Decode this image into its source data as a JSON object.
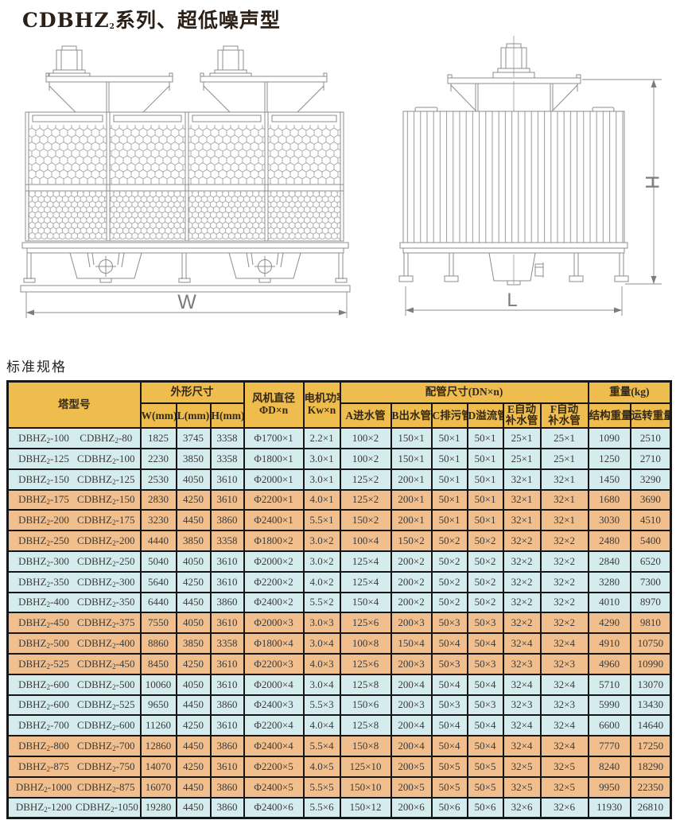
{
  "page": {
    "title": "CDBHZ₂系列、超低噪声型",
    "section_title": "标准规格"
  },
  "drawing": {
    "labels": {
      "front_width": "W",
      "side_length": "L",
      "side_height": "H"
    }
  },
  "table": {
    "header": {
      "model": "塔型号",
      "dims": "外形尺寸",
      "w": "W(mm)",
      "l": "L(mm)",
      "h": "H(mm)",
      "fan1": "风机直径",
      "fan2": "ΦD×n",
      "power1": "电机功率",
      "power2": "Kw×n",
      "piping": "配管尺寸(DN×n)",
      "pa": "A进水管",
      "pb": "B出水管",
      "pc": "C排污管",
      "pd": "D溢流管",
      "pe1": "E自动",
      "pe2": "补水管",
      "pf1": "F自动",
      "pf2": "补水管",
      "weight": "重量(kg)",
      "wstruct": "结构重量",
      "wrun": "运转重量"
    },
    "rows": [
      {
        "model_a": "DBHZ₂-100",
        "model_b": "CDBHZ₂-80",
        "w": "1825",
        "l": "3745",
        "h": "3358",
        "fan": "Φ1700×1",
        "power": "2.2×1",
        "a": "100×2",
        "b": "150×1",
        "c": "50×1",
        "d": "50×1",
        "e": "25×1",
        "f": "25×1",
        "ws": "1090",
        "wr": "2510",
        "tint": "blue"
      },
      {
        "model_a": "DBHZ₂-125",
        "model_b": "CDBHZ₂-100",
        "w": "2230",
        "l": "3850",
        "h": "3358",
        "fan": "Φ1800×1",
        "power": "3.0×1",
        "a": "100×2",
        "b": "150×1",
        "c": "50×1",
        "d": "50×1",
        "e": "25×1",
        "f": "25×1",
        "ws": "1250",
        "wr": "2710",
        "tint": "blue"
      },
      {
        "model_a": "DBHZ₂-150",
        "model_b": "CDBHZ₂-125",
        "w": "2530",
        "l": "4050",
        "h": "3610",
        "fan": "Φ2000×1",
        "power": "3.0×1",
        "a": "125×2",
        "b": "200×1",
        "c": "50×1",
        "d": "50×1",
        "e": "32×1",
        "f": "32×1",
        "ws": "1450",
        "wr": "3290",
        "tint": "blue"
      },
      {
        "model_a": "DBHZ₂-175",
        "model_b": "CDBHZ₂-150",
        "w": "2830",
        "l": "4250",
        "h": "3610",
        "fan": "Φ2200×1",
        "power": "4.0×1",
        "a": "125×2",
        "b": "200×1",
        "c": "50×1",
        "d": "50×1",
        "e": "32×1",
        "f": "32×1",
        "ws": "1680",
        "wr": "3690",
        "tint": "tan"
      },
      {
        "model_a": "DBHZ₂-200",
        "model_b": "CDBHZ₂-175",
        "w": "3230",
        "l": "4450",
        "h": "3860",
        "fan": "Φ2400×1",
        "power": "5.5×1",
        "a": "150×2",
        "b": "200×1",
        "c": "50×1",
        "d": "50×1",
        "e": "32×1",
        "f": "32×1",
        "ws": "3030",
        "wr": "4510",
        "tint": "tan"
      },
      {
        "model_a": "DBHZ₂-250",
        "model_b": "CDBHZ₂-200",
        "w": "4440",
        "l": "3850",
        "h": "3358",
        "fan": "Φ1800×2",
        "power": "3.0×2",
        "a": "100×4",
        "b": "150×2",
        "c": "50×2",
        "d": "50×2",
        "e": "32×2",
        "f": "32×2",
        "ws": "2480",
        "wr": "5400",
        "tint": "tan"
      },
      {
        "model_a": "DBHZ₂-300",
        "model_b": "CDBHZ₂-250",
        "w": "5040",
        "l": "4050",
        "h": "3610",
        "fan": "Φ2000×2",
        "power": "3.0×2",
        "a": "125×4",
        "b": "200×2",
        "c": "50×2",
        "d": "50×2",
        "e": "32×2",
        "f": "32×2",
        "ws": "2840",
        "wr": "6520",
        "tint": "blue"
      },
      {
        "model_a": "DBHZ₂-350",
        "model_b": "CDBHZ₂-300",
        "w": "5640",
        "l": "4250",
        "h": "3610",
        "fan": "Φ2200×2",
        "power": "4.0×2",
        "a": "125×4",
        "b": "200×2",
        "c": "50×2",
        "d": "50×2",
        "e": "32×2",
        "f": "32×2",
        "ws": "3280",
        "wr": "7300",
        "tint": "blue"
      },
      {
        "model_a": "DBHZ₂-400",
        "model_b": "CDBHZ₂-350",
        "w": "6440",
        "l": "4450",
        "h": "3860",
        "fan": "Φ2400×2",
        "power": "5.5×2",
        "a": "150×4",
        "b": "200×2",
        "c": "50×2",
        "d": "50×2",
        "e": "32×2",
        "f": "32×2",
        "ws": "4010",
        "wr": "8970",
        "tint": "blue"
      },
      {
        "model_a": "DBHZ₂-450",
        "model_b": "CDBHZ₂-375",
        "w": "7550",
        "l": "4050",
        "h": "3610",
        "fan": "Φ2000×3",
        "power": "3.0×3",
        "a": "125×6",
        "b": "200×3",
        "c": "50×3",
        "d": "50×3",
        "e": "32×2",
        "f": "32×2",
        "ws": "4290",
        "wr": "9810",
        "tint": "tan"
      },
      {
        "model_a": "DBHZ₂-500",
        "model_b": "CDBHZ₂-400",
        "w": "8860",
        "l": "3850",
        "h": "3358",
        "fan": "Φ1800×4",
        "power": "3.0×4",
        "a": "100×8",
        "b": "150×4",
        "c": "50×4",
        "d": "50×4",
        "e": "32×4",
        "f": "32×4",
        "ws": "4910",
        "wr": "10750",
        "tint": "tan"
      },
      {
        "model_a": "DBHZ₂-525",
        "model_b": "CDBHZ₂-450",
        "w": "8450",
        "l": "4250",
        "h": "3610",
        "fan": "Φ2200×3",
        "power": "4.0×3",
        "a": "125×6",
        "b": "200×3",
        "c": "50×3",
        "d": "50×3",
        "e": "32×3",
        "f": "32×3",
        "ws": "4960",
        "wr": "10990",
        "tint": "tan"
      },
      {
        "model_a": "DBHZ₂-600",
        "model_b": "CDBHZ₂-500",
        "w": "10060",
        "l": "4050",
        "h": "3610",
        "fan": "Φ2000×4",
        "power": "3.0×4",
        "a": "125×8",
        "b": "200×4",
        "c": "50×4",
        "d": "50×4",
        "e": "32×4",
        "f": "32×4",
        "ws": "5710",
        "wr": "13070",
        "tint": "blue"
      },
      {
        "model_a": "DBHZ₂-600",
        "model_b": "CDBHZ₂-525",
        "w": "9650",
        "l": "4450",
        "h": "3860",
        "fan": "Φ2400×3",
        "power": "5.5×3",
        "a": "150×6",
        "b": "200×3",
        "c": "50×3",
        "d": "50×3",
        "e": "32×3",
        "f": "32×3",
        "ws": "5990",
        "wr": "13430",
        "tint": "blue"
      },
      {
        "model_a": "DBHZ₂-700",
        "model_b": "CDBHZ₂-600",
        "w": "11260",
        "l": "4250",
        "h": "3610",
        "fan": "Φ2200×4",
        "power": "4.0×4",
        "a": "125×8",
        "b": "200×4",
        "c": "50×4",
        "d": "50×4",
        "e": "32×4",
        "f": "32×4",
        "ws": "6600",
        "wr": "14640",
        "tint": "blue"
      },
      {
        "model_a": "DBHZ₂-800",
        "model_b": "CDBHZ₂-700",
        "w": "12860",
        "l": "4450",
        "h": "3860",
        "fan": "Φ2400×4",
        "power": "5.5×4",
        "a": "150×8",
        "b": "200×4",
        "c": "50×4",
        "d": "50×4",
        "e": "32×4",
        "f": "32×4",
        "ws": "7770",
        "wr": "17250",
        "tint": "tan"
      },
      {
        "model_a": "DBHZ₂-875",
        "model_b": "CDBHZ₂-750",
        "w": "14070",
        "l": "4250",
        "h": "3610",
        "fan": "Φ2200×5",
        "power": "4.0×5",
        "a": "125×10",
        "b": "200×5",
        "c": "50×5",
        "d": "50×5",
        "e": "32×5",
        "f": "32×5",
        "ws": "8240",
        "wr": "18290",
        "tint": "tan"
      },
      {
        "model_a": "DBHZ₂-1000",
        "model_b": "CDBHZ₂-875",
        "w": "16070",
        "l": "4450",
        "h": "3860",
        "fan": "Φ2400×5",
        "power": "5.5×5",
        "a": "150×10",
        "b": "200×5",
        "c": "50×5",
        "d": "50×5",
        "e": "32×5",
        "f": "32×5",
        "ws": "9950",
        "wr": "22350",
        "tint": "tan"
      },
      {
        "model_a": "DBHZ₂-1200",
        "model_b": "CDBHZ₂-1050",
        "w": "19280",
        "l": "4450",
        "h": "3860",
        "fan": "Φ2400×6",
        "power": "5.5×6",
        "a": "150×12",
        "b": "200×6",
        "c": "50×6",
        "d": "50×6",
        "e": "32×6",
        "f": "32×6",
        "ws": "11930",
        "wr": "26810",
        "tint": "blue"
      }
    ]
  },
  "colors": {
    "header_bg": "#EFBD4E",
    "row_blue": "#D5ECEF",
    "row_tan": "#F0BF8D",
    "grid_line": "#161616",
    "drawing_stroke": "#8c8c8c"
  }
}
